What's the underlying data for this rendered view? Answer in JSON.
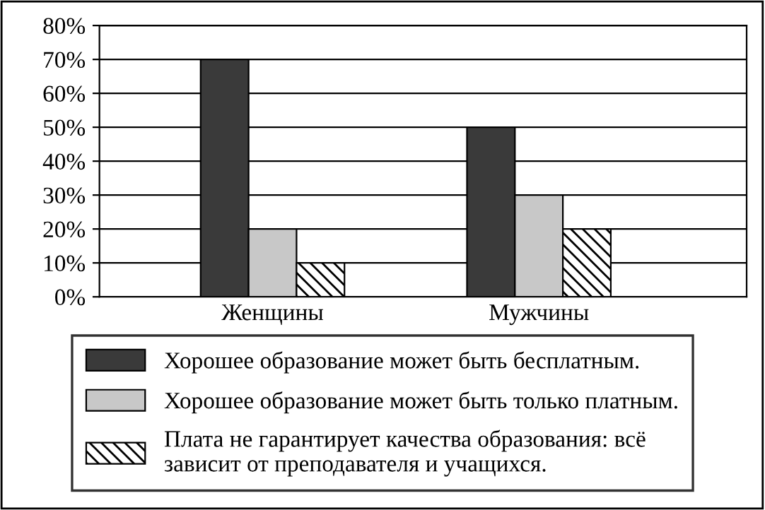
{
  "chart_data": {
    "type": "bar",
    "categories": [
      "Женщины",
      "Мужчины"
    ],
    "series": [
      {
        "name": "Хорошее образование может быть бесплатным.",
        "color": "#3a3a3a",
        "values": [
          70,
          50
        ]
      },
      {
        "name": "Хорошее образование может быть только платным.",
        "color": "#c8c8c8",
        "values": [
          20,
          30
        ]
      },
      {
        "name": "Плата не гарантирует качества образования: всё\nзависит от преподавателя и учащихся.",
        "color": "#000000",
        "values": [
          10,
          20
        ]
      }
    ],
    "ylim": [
      0,
      80
    ],
    "yticks": [
      {
        "value": 0,
        "label": "0%"
      },
      {
        "value": 10,
        "label": "10%"
      },
      {
        "value": 20,
        "label": "20%"
      },
      {
        "value": 30,
        "label": "30%"
      },
      {
        "value": 40,
        "label": "40%"
      },
      {
        "value": 50,
        "label": "50%"
      },
      {
        "value": 60,
        "label": "60%"
      },
      {
        "value": 70,
        "label": "70%"
      },
      {
        "value": 80,
        "label": "80%"
      }
    ],
    "grid": "y",
    "legend": "bottom"
  }
}
